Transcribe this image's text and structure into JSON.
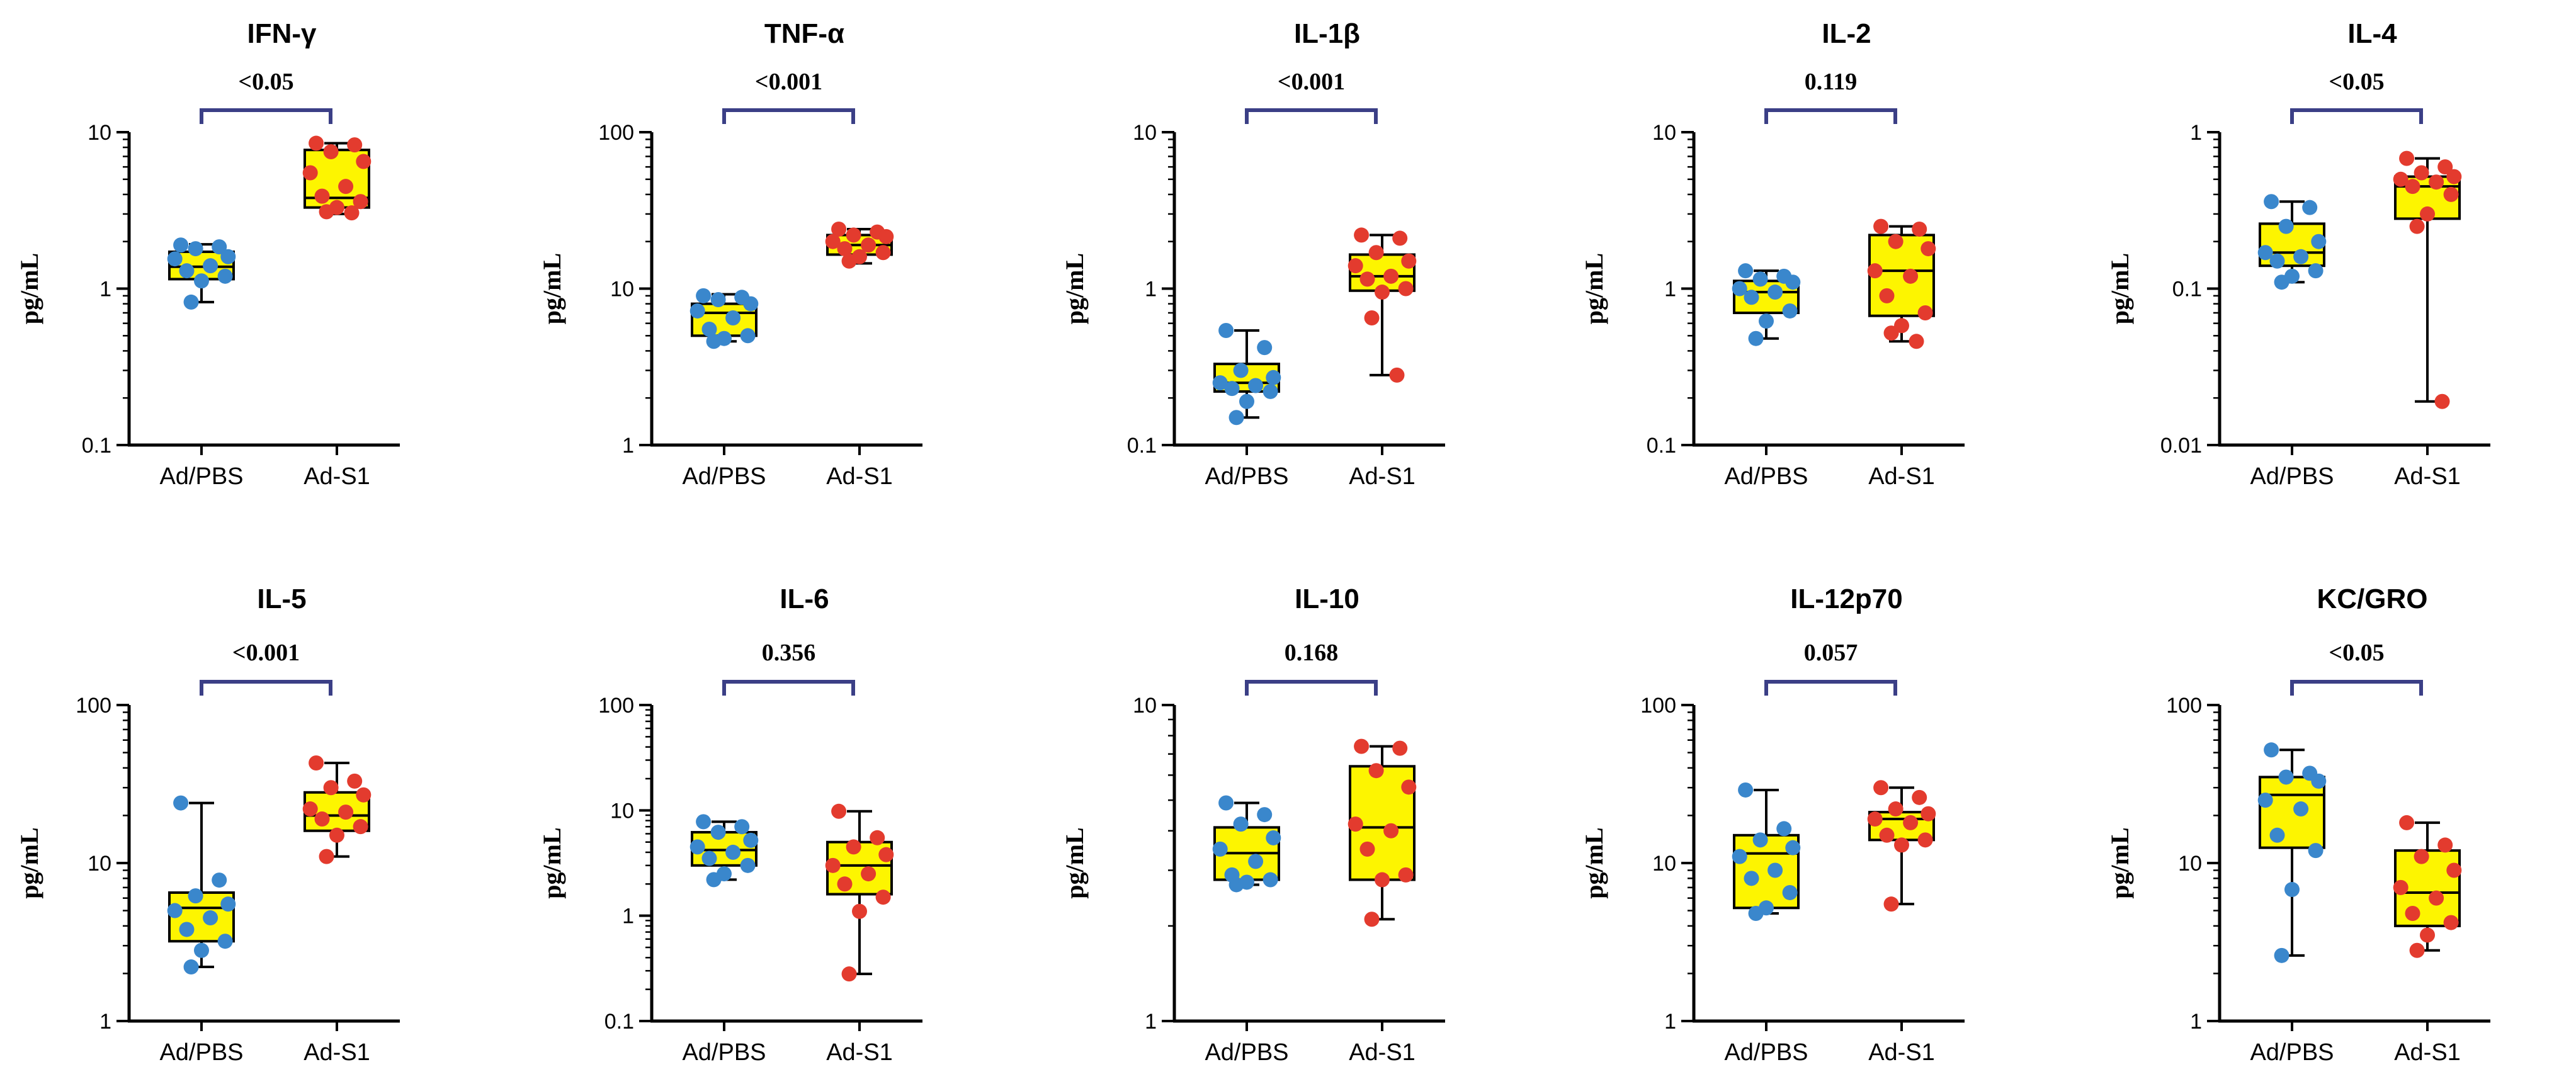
{
  "figure_title": "",
  "colors": {
    "box_fill": "#fdf500",
    "ad_pbs_points": "#3a87cc",
    "ad_s1_points": "#e33b2e",
    "bracket": "#3b3f86"
  },
  "chart_data": [
    {
      "type": "box",
      "title": "IFN-γ",
      "ylabel": "pg/mL",
      "yscale": "log",
      "ylim": [
        0.1,
        10
      ],
      "yticks": [
        "0.1",
        "1",
        "10"
      ],
      "categories": [
        "Ad/PBS",
        "Ad-S1"
      ],
      "p_value": "<0.05",
      "series": [
        {
          "name": "Ad/PBS",
          "q1": 1.15,
          "median": 1.38,
          "q3": 1.72,
          "min": 0.82,
          "max": 1.92,
          "points": [
            1.9,
            1.85,
            1.8,
            1.6,
            1.55,
            1.4,
            1.3,
            1.2,
            1.12,
            0.82
          ]
        },
        {
          "name": "Ad-S1",
          "q1": 3.3,
          "median": 3.8,
          "q3": 7.7,
          "min": 3.0,
          "max": 8.5,
          "points": [
            8.5,
            8.3,
            7.5,
            6.5,
            5.5,
            4.5,
            3.9,
            3.6,
            3.3,
            3.1,
            3.05
          ]
        }
      ]
    },
    {
      "type": "box",
      "title": "TNF-α",
      "ylabel": "pg/mL",
      "yscale": "log",
      "ylim": [
        1,
        100
      ],
      "yticks": [
        "1",
        "10",
        "100"
      ],
      "categories": [
        "Ad/PBS",
        "Ad-S1"
      ],
      "p_value": "<0.001",
      "series": [
        {
          "name": "Ad/PBS",
          "q1": 5.0,
          "median": 7.0,
          "q3": 8.0,
          "min": 4.6,
          "max": 9.2,
          "points": [
            9.0,
            8.8,
            8.5,
            8.0,
            7.2,
            6.5,
            5.5,
            5.0,
            4.8,
            4.6
          ]
        },
        {
          "name": "Ad-S1",
          "q1": 16.5,
          "median": 19.0,
          "q3": 22.0,
          "min": 14.5,
          "max": 24.0,
          "points": [
            24.0,
            23.0,
            22.0,
            21.5,
            20.0,
            19.0,
            18.0,
            17.0,
            16.0,
            15.0
          ]
        }
      ]
    },
    {
      "type": "box",
      "title": "IL-1β",
      "ylabel": "pg/mL",
      "yscale": "log",
      "ylim": [
        0.1,
        10
      ],
      "yticks": [
        "0.1",
        "1",
        "10"
      ],
      "categories": [
        "Ad/PBS",
        "Ad-S1"
      ],
      "p_value": "<0.001",
      "series": [
        {
          "name": "Ad/PBS",
          "q1": 0.22,
          "median": 0.25,
          "q3": 0.33,
          "min": 0.15,
          "max": 0.54,
          "points": [
            0.54,
            0.42,
            0.3,
            0.27,
            0.25,
            0.24,
            0.23,
            0.22,
            0.19,
            0.15
          ]
        },
        {
          "name": "Ad-S1",
          "q1": 0.97,
          "median": 1.2,
          "q3": 1.65,
          "min": 0.28,
          "max": 2.2,
          "points": [
            2.2,
            2.1,
            1.7,
            1.5,
            1.4,
            1.2,
            1.15,
            1.0,
            0.95,
            0.65,
            0.28
          ]
        }
      ]
    },
    {
      "type": "box",
      "title": "IL-2",
      "ylabel": "pg/mL",
      "yscale": "log",
      "ylim": [
        0.1,
        10
      ],
      "yticks": [
        "0.1",
        "1",
        "10"
      ],
      "categories": [
        "Ad/PBS",
        "Ad-S1"
      ],
      "p_value": "0.119",
      "series": [
        {
          "name": "Ad/PBS",
          "q1": 0.7,
          "median": 0.95,
          "q3": 1.12,
          "min": 0.48,
          "max": 1.3,
          "points": [
            1.3,
            1.2,
            1.15,
            1.1,
            1.0,
            0.95,
            0.88,
            0.72,
            0.62,
            0.48
          ]
        },
        {
          "name": "Ad-S1",
          "q1": 0.67,
          "median": 1.3,
          "q3": 2.2,
          "min": 0.46,
          "max": 2.5,
          "points": [
            2.5,
            2.4,
            2.0,
            1.8,
            1.3,
            1.2,
            0.9,
            0.7,
            0.58,
            0.52,
            0.46
          ]
        }
      ]
    },
    {
      "type": "box",
      "title": "IL-4",
      "ylabel": "pg/mL",
      "yscale": "log",
      "ylim": [
        0.01,
        1
      ],
      "yticks": [
        "0.01",
        "0.1",
        "1"
      ],
      "categories": [
        "Ad/PBS",
        "Ad-S1"
      ],
      "p_value": "<0.05",
      "series": [
        {
          "name": "Ad/PBS",
          "q1": 0.14,
          "median": 0.17,
          "q3": 0.26,
          "min": 0.11,
          "max": 0.36,
          "points": [
            0.36,
            0.33,
            0.25,
            0.2,
            0.17,
            0.16,
            0.15,
            0.13,
            0.12,
            0.11
          ]
        },
        {
          "name": "Ad-S1",
          "q1": 0.28,
          "median": 0.45,
          "q3": 0.52,
          "min": 0.019,
          "max": 0.68,
          "points": [
            0.68,
            0.6,
            0.55,
            0.52,
            0.5,
            0.48,
            0.45,
            0.4,
            0.3,
            0.25,
            0.019
          ]
        }
      ]
    },
    {
      "type": "box",
      "title": "IL-5",
      "ylabel": "pg/mL",
      "yscale": "log",
      "ylim": [
        1,
        100
      ],
      "yticks": [
        "1",
        "10",
        "100"
      ],
      "categories": [
        "Ad/PBS",
        "Ad-S1"
      ],
      "p_value": "<0.001",
      "series": [
        {
          "name": "Ad/PBS",
          "q1": 3.2,
          "median": 5.2,
          "q3": 6.5,
          "min": 2.2,
          "max": 24.0,
          "points": [
            24.0,
            7.8,
            6.2,
            5.5,
            5.0,
            4.5,
            3.8,
            3.2,
            2.8,
            2.2
          ]
        },
        {
          "name": "Ad-S1",
          "q1": 16.0,
          "median": 20.0,
          "q3": 28.0,
          "min": 11.0,
          "max": 43.0,
          "points": [
            43.0,
            33.0,
            30.0,
            27.0,
            22.0,
            21.0,
            19.0,
            17.0,
            15.0,
            11.0
          ]
        }
      ]
    },
    {
      "type": "box",
      "title": "IL-6",
      "ylabel": "pg/mL",
      "yscale": "log",
      "ylim": [
        0.1,
        100
      ],
      "yticks": [
        "0.1",
        "1",
        "10",
        "100"
      ],
      "categories": [
        "Ad/PBS",
        "Ad-S1"
      ],
      "p_value": "0.356",
      "series": [
        {
          "name": "Ad/PBS",
          "q1": 3.0,
          "median": 4.2,
          "q3": 6.2,
          "min": 2.2,
          "max": 7.8,
          "points": [
            7.8,
            7.0,
            6.2,
            5.2,
            4.5,
            4.0,
            3.5,
            3.0,
            2.5,
            2.2
          ]
        },
        {
          "name": "Ad-S1",
          "q1": 1.6,
          "median": 3.0,
          "q3": 5.0,
          "min": 0.28,
          "max": 9.8,
          "points": [
            9.8,
            5.5,
            4.5,
            3.8,
            3.0,
            2.5,
            2.0,
            1.5,
            1.1,
            0.28
          ]
        }
      ]
    },
    {
      "type": "box",
      "title": "IL-10",
      "ylabel": "pg/mL",
      "yscale": "log",
      "ylim": [
        1,
        10
      ],
      "yticks": [
        "1",
        "10"
      ],
      "categories": [
        "Ad/PBS",
        "Ad-S1"
      ],
      "p_value": "0.168",
      "series": [
        {
          "name": "Ad/PBS",
          "q1": 2.8,
          "median": 3.4,
          "q3": 4.1,
          "min": 2.7,
          "max": 4.9,
          "points": [
            4.9,
            4.5,
            4.2,
            3.8,
            3.5,
            3.2,
            2.9,
            2.8,
            2.75,
            2.7
          ]
        },
        {
          "name": "Ad-S1",
          "q1": 2.8,
          "median": 4.1,
          "q3": 6.4,
          "min": 2.1,
          "max": 7.4,
          "points": [
            7.4,
            7.3,
            6.2,
            5.5,
            4.2,
            4.0,
            3.5,
            2.9,
            2.8,
            2.1
          ]
        }
      ]
    },
    {
      "type": "box",
      "title": "IL-12p70",
      "ylabel": "pg/mL",
      "yscale": "log",
      "ylim": [
        1,
        100
      ],
      "yticks": [
        "1",
        "10",
        "100"
      ],
      "categories": [
        "Ad/PBS",
        "Ad-S1"
      ],
      "p_value": "0.057",
      "series": [
        {
          "name": "Ad/PBS",
          "q1": 5.2,
          "median": 11.5,
          "q3": 15.0,
          "min": 4.8,
          "max": 29.0,
          "points": [
            29.0,
            16.5,
            14.0,
            12.5,
            11.0,
            9.0,
            8.0,
            6.5,
            5.2,
            4.8
          ]
        },
        {
          "name": "Ad-S1",
          "q1": 14.0,
          "median": 19.0,
          "q3": 21.0,
          "min": 5.5,
          "max": 30.0,
          "points": [
            30.0,
            26.0,
            22.0,
            20.5,
            19.0,
            18.0,
            15.0,
            14.0,
            13.0,
            5.5
          ]
        }
      ]
    },
    {
      "type": "box",
      "title": "KC/GRO",
      "ylabel": "pg/mL",
      "yscale": "log",
      "ylim": [
        1,
        100
      ],
      "yticks": [
        "1",
        "10",
        "100"
      ],
      "categories": [
        "Ad/PBS",
        "Ad-S1"
      ],
      "p_value": "<0.05",
      "series": [
        {
          "name": "Ad/PBS",
          "q1": 12.5,
          "median": 27.0,
          "q3": 35.0,
          "min": 2.6,
          "max": 52.0,
          "points": [
            52.0,
            37.0,
            35.0,
            33.0,
            25.0,
            22.0,
            15.0,
            12.0,
            6.8,
            2.6
          ]
        },
        {
          "name": "Ad-S1",
          "q1": 4.0,
          "median": 6.5,
          "q3": 12.0,
          "min": 2.8,
          "max": 18.0,
          "points": [
            18.0,
            13.0,
            11.0,
            9.0,
            7.0,
            6.0,
            4.8,
            4.2,
            3.5,
            2.8
          ]
        }
      ]
    }
  ]
}
